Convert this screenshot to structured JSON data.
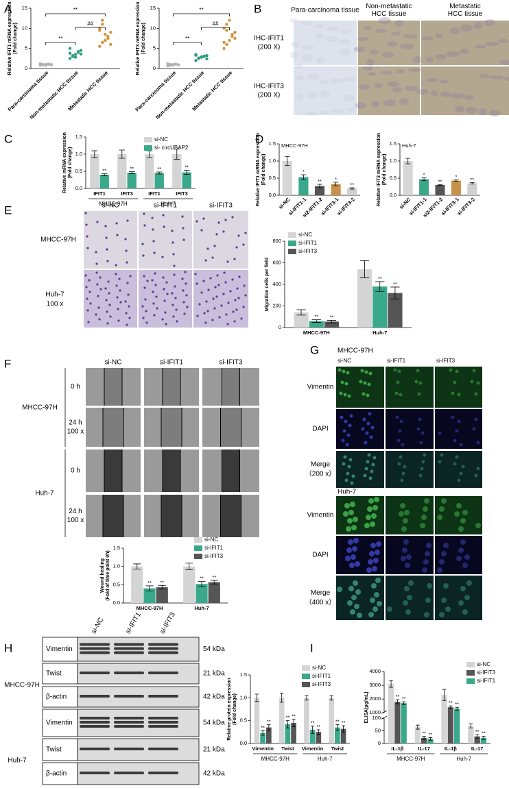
{
  "labels": [
    "A",
    "B",
    "C",
    "D",
    "E",
    "F",
    "G",
    "H",
    "I"
  ],
  "ihc": {
    "columns": [
      [
        "Para-carcinoma tissue"
      ],
      [
        "Non-metastatic",
        "HCC tissue"
      ],
      [
        "Metastatic",
        "HCC tissue"
      ]
    ],
    "rows": [
      [
        "IHC-IFIT1",
        "(200 X)"
      ],
      [
        "IHC-IFIT3",
        "(200 X)"
      ]
    ]
  },
  "transwell": {
    "columns": [
      "si-NC",
      "si-IFIT1",
      "si-IFIT3"
    ],
    "rows": [
      [
        "MHCC-97H"
      ],
      [
        "Huh-7",
        "100 x"
      ]
    ]
  },
  "wound": {
    "columns": [
      "si-NC",
      "si-IFIT1",
      "si-IFIT3"
    ],
    "cell_lines": [
      "MHCC-97H",
      "Huh-7"
    ],
    "times": [
      [
        "0 h"
      ],
      [
        "24 h",
        "100 x"
      ],
      [
        "0 h"
      ],
      [
        "24 h",
        "100 x"
      ]
    ]
  },
  "immunofluorescence": {
    "cell_lines": [
      "MHCC-97H",
      "Huh-7"
    ],
    "columns": [
      "si-NC",
      "si-IFIT1",
      "si-IFIT3"
    ],
    "rows": [
      [
        "Vimentin"
      ],
      [
        "DAPI"
      ],
      [
        "Merge",
        "（200 x）"
      ],
      [
        "Vimentin"
      ],
      [
        "DAPI"
      ],
      [
        "Merge",
        "（400 x）"
      ]
    ]
  },
  "western": {
    "columns": [
      "si-NC",
      "si-IFIT1",
      "si-IFIT3"
    ],
    "cell_lines": [
      "MHCC-97H",
      "Huh-7"
    ],
    "proteins": [
      "Vimentin",
      "Twist",
      "β-actin",
      "Vimentin",
      "Twist",
      "β-actin"
    ],
    "sizes": [
      "54 kDa",
      "21 kDa",
      "42 kDa",
      "54 kDa",
      "21 kDa",
      "42 kDa"
    ]
  },
  "chart_data": [
    {
      "type": "dot",
      "ylabel": [
        "Relative IFIT1 mRNA expression",
        "(Fold change)"
      ],
      "categories": [
        "Para-carcinoma tissue",
        "Non-metastatic HCC tissue",
        "Metastatic HCC tissue"
      ],
      "colors": [
        "#b0b0b0",
        "#2e9c80",
        "#d1953c"
      ],
      "values": [
        [
          0.8,
          0.9,
          1.0,
          1.1,
          0.9,
          1.2,
          1.0,
          0.8,
          1.1,
          1.0
        ],
        [
          2.5,
          3.0,
          3.5,
          4.0,
          4.5,
          3.8,
          3.2,
          2.8,
          4.2,
          3.6,
          5.0
        ],
        [
          5.5,
          6.5,
          7.0,
          8.0,
          9.0,
          10.0,
          11.0,
          8.5,
          7.5,
          6.0,
          9.5,
          12.0
        ]
      ],
      "ylim": [
        0,
        15
      ],
      "yticks": [
        0,
        5,
        10,
        15
      ],
      "annotations": [
        "**",
        "**",
        "##"
      ]
    },
    {
      "type": "dot",
      "ylabel": [
        "Relative IFIT3 mRNA expression",
        "(Fold change)"
      ],
      "categories": [
        "Para-carcinoma tissue",
        "Non-metastatic HCC tissue",
        "Metastatic HCC tissue"
      ],
      "colors": [
        "#b0b0b0",
        "#2e9c80",
        "#d1953c"
      ],
      "values": [
        [
          0.7,
          0.8,
          1.0,
          1.1,
          0.9,
          1.2,
          1.0,
          0.9,
          1.1
        ],
        [
          2.0,
          2.5,
          2.8,
          3.0,
          3.2,
          3.5,
          2.6,
          2.9,
          3.1,
          2.4,
          3.3
        ],
        [
          5.0,
          6.0,
          7.0,
          8.0,
          9.0,
          10.0,
          11.0,
          12.0,
          8.5,
          7.5,
          6.5,
          9.5
        ]
      ],
      "ylim": [
        0,
        15
      ],
      "yticks": [
        0,
        5,
        10,
        15
      ],
      "annotations": [
        "**",
        "**",
        "##"
      ]
    },
    {
      "type": "bar",
      "ylabel": [
        "Relative mRNA expression",
        "(Fold change)"
      ],
      "categories": [
        "IFIT1",
        "IFIT3",
        "IFIT1",
        "IFIT3"
      ],
      "groups": [
        "MHCC-97H",
        "Huh-7"
      ],
      "series": [
        {
          "name": "si-NC",
          "color": "#d4d4d4",
          "values": [
            1,
            1,
            1,
            1
          ],
          "errors": [
            0.1,
            0.12,
            0.1,
            0.15
          ]
        },
        {
          "name": "si- circUBAP2",
          "color": "#3aa88a",
          "values": [
            0.4,
            0.46,
            0.45,
            0.47
          ],
          "errors": [
            0.03,
            0.03,
            0.03,
            0.06
          ],
          "annotations": [
            "**",
            "**",
            "**",
            "**"
          ]
        }
      ],
      "ylim": [
        0,
        1.5
      ],
      "yticks": [
        {
          "value": 0,
          "label": "0.0"
        },
        {
          "value": 0.5,
          "label": "0.5"
        },
        {
          "value": 1,
          "label": "1.0"
        },
        {
          "value": 1.5,
          "label": "1.5"
        }
      ]
    },
    {
      "type": "bar",
      "title": "MHCC-97H",
      "ylabel": [
        "Relative IFIT1 mRNA expression",
        "(Fold change)"
      ],
      "categories": [
        "si-NC",
        "si-IFIT1-1",
        "si2-IFIT1-2",
        "si-IFIT3-1",
        "si-IFIT3-2"
      ],
      "colors": [
        "#d6d6d6",
        "#3aa88a",
        "#555555",
        "#c8924a",
        "#cfcfcf"
      ],
      "values": [
        1,
        0.53,
        0.27,
        0.33,
        0.2
      ],
      "errors": [
        0.13,
        0.07,
        0.05,
        0.05,
        0.02
      ],
      "annotations": [
        null,
        "*",
        "**",
        "*",
        "**"
      ],
      "ylim": [
        0,
        1.5
      ],
      "yticks": [
        {
          "value": 0,
          "label": "0.0"
        },
        {
          "value": 0.5,
          "label": "0.5"
        },
        {
          "value": 1,
          "label": "1.0"
        },
        {
          "value": 1.5,
          "label": "1.5"
        }
      ]
    },
    {
      "type": "bar",
      "title": "Huh-7",
      "ylabel": [
        "Relative IFIT3 mRNA expression",
        "(Fold change)"
      ],
      "categories": [
        "si-NC",
        "si-IFIT1-1",
        "si2-IFIT1-2",
        "si-IFIT3-1",
        "si-IFIT3-2"
      ],
      "colors": [
        "#d6d6d6",
        "#3aa88a",
        "#555555",
        "#c8924a",
        "#cfcfcf"
      ],
      "values": [
        1,
        0.47,
        0.3,
        0.43,
        0.35
      ],
      "errors": [
        0.08,
        0.04,
        0.01,
        0.02,
        0.02
      ],
      "annotations": [
        null,
        "*",
        "**",
        "*",
        "**"
      ],
      "ylim": [
        0,
        1.5
      ],
      "yticks": [
        {
          "value": 0,
          "label": "0.0"
        },
        {
          "value": 0.5,
          "label": "0.5"
        },
        {
          "value": 1,
          "label": "1.0"
        },
        {
          "value": 1.5,
          "label": "1.5"
        }
      ]
    },
    {
      "type": "bar",
      "ylabel": "Migration cells per field",
      "categories": [
        "MHCC-97H",
        "Huh-7"
      ],
      "series": [
        {
          "name": "si-NC",
          "color": "#d4d4d4",
          "values": [
            140,
            540
          ],
          "errors": [
            25,
            80
          ]
        },
        {
          "name": "si-IFIT1",
          "color": "#3aa88a",
          "values": [
            60,
            380
          ],
          "errors": [
            12,
            45
          ],
          "annotations": [
            "**",
            "**"
          ]
        },
        {
          "name": "si-IFIT3",
          "color": "#555555",
          "values": [
            55,
            320
          ],
          "errors": [
            12,
            55
          ],
          "annotations": [
            "**",
            "**"
          ]
        }
      ],
      "ylim": [
        0,
        800
      ],
      "yticks": [
        0,
        200,
        400,
        600,
        800
      ]
    },
    {
      "type": "bar",
      "ylabel": [
        "Wound healing",
        "(Fold of time point 0h)"
      ],
      "categories": [
        "MHCC-97H",
        "Huh-7"
      ],
      "series": [
        {
          "name": "si-NC",
          "color": "#d4d4d4",
          "values": [
            1.0,
            1.0
          ],
          "errors": [
            0.07,
            0.09
          ]
        },
        {
          "name": "si-IFIT1",
          "color": "#3aa88a",
          "values": [
            0.4,
            0.52
          ],
          "errors": [
            0.07,
            0.07
          ],
          "annotations": [
            "**",
            "**"
          ]
        },
        {
          "name": "si-IFIT3",
          "color": "#555555",
          "values": [
            0.43,
            0.57
          ],
          "errors": [
            0.05,
            0.05
          ],
          "annotations": [
            "**",
            "**"
          ]
        }
      ],
      "ylim": [
        0,
        1.5
      ],
      "yticks": [
        {
          "value": 0,
          "label": "0.0"
        },
        {
          "value": 0.5,
          "label": "0.5"
        },
        {
          "value": 1,
          "label": "1.0"
        },
        {
          "value": 1.5,
          "label": "1.5"
        }
      ]
    },
    {
      "type": "bar",
      "ylabel": [
        "Relative protein expression",
        "(Fold change)"
      ],
      "categories": [
        "Vimentin",
        "Twist",
        "Vimentin",
        "Twist"
      ],
      "groups": [
        "MHCC-97H",
        "Huh-7"
      ],
      "series": [
        {
          "name": "si-NC",
          "color": "#d4d4d4",
          "values": [
            1,
            1,
            1,
            1
          ],
          "errors": [
            0.08,
            0.1,
            0.05,
            0.05
          ]
        },
        {
          "name": "si-IFIT1",
          "color": "#3aa88a",
          "values": [
            0.23,
            0.42,
            0.3,
            0.35
          ],
          "errors": [
            0.05,
            0.08,
            0.08,
            0.06
          ],
          "annotations": [
            "**",
            "**",
            "**",
            "**"
          ]
        },
        {
          "name": "si-IFIT3",
          "color": "#555555",
          "values": [
            0.35,
            0.45,
            0.25,
            0.32
          ],
          "errors": [
            0.06,
            0.08,
            0.05,
            0.07
          ],
          "annotations": [
            "**",
            "**",
            "**",
            "**"
          ]
        }
      ],
      "ylim": [
        0,
        1.5
      ],
      "yticks": [
        {
          "value": 0,
          "label": "0.0"
        },
        {
          "value": 0.5,
          "label": "0.5"
        },
        {
          "value": 1,
          "label": "1.0"
        },
        {
          "value": 1.5,
          "label": "1.5"
        }
      ]
    },
    {
      "type": "bar",
      "ylabel": "ELISA(pg/mL)",
      "categories": [
        "IL-1β",
        "IL-17",
        "IL-1β",
        "IL-17"
      ],
      "groups": [
        "MHCC-97H",
        "Huh-7"
      ],
      "series": [
        {
          "name": "si-NC",
          "color": "#d4d4d4",
          "values": [
            3100,
            65,
            2300,
            70
          ],
          "errors": [
            250,
            8,
            400,
            8
          ]
        },
        {
          "name": "si-IFIT3",
          "color": "#555555",
          "values": [
            1800,
            22,
            1400,
            28
          ],
          "errors": [
            150,
            6,
            100,
            7
          ],
          "annotations": [
            "**",
            "**",
            "**",
            "**"
          ]
        },
        {
          "name": "si-IFIT1",
          "color": "#3aa88a",
          "values": [
            1700,
            18,
            1300,
            22
          ],
          "errors": [
            100,
            5,
            100,
            6
          ],
          "annotations": [
            "**",
            "**",
            "**",
            "**"
          ]
        }
      ],
      "ylim": [
        0,
        4000
      ],
      "ybreak": [
        100,
        1000
      ],
      "yticks": [
        0,
        50,
        100,
        1000,
        2000,
        3000,
        4000
      ]
    }
  ]
}
